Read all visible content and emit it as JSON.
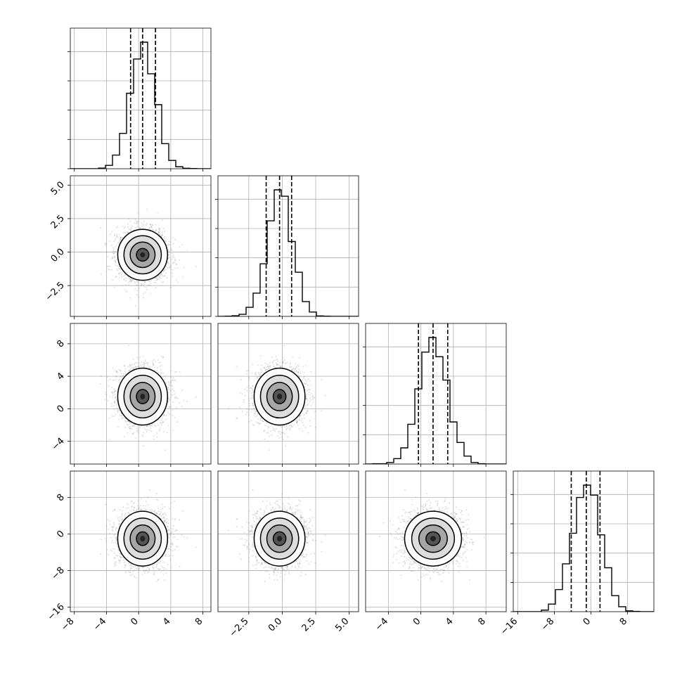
{
  "chart_data": {
    "type": "corner",
    "ticks": [
      [
        "−8",
        "−4",
        "0",
        "4",
        "8"
      ],
      [
        "−2.5",
        "0.0",
        "2.5",
        "5.0"
      ],
      [
        "−4",
        "0",
        "4",
        "8"
      ],
      [
        "−16",
        "−8",
        "0",
        "8"
      ]
    ],
    "tick_values": [
      [
        -8,
        -4,
        0,
        4,
        8
      ],
      [
        -2.5,
        0.0,
        2.5,
        5.0
      ],
      [
        -4,
        0,
        4,
        8
      ],
      [
        -16,
        -8,
        0,
        8
      ]
    ],
    "ranges": [
      [
        -8.5,
        9.0
      ],
      [
        -4.8,
        5.7
      ],
      [
        -6.8,
        10.5
      ],
      [
        -17.0,
        13.8
      ]
    ],
    "means": [
      0.5,
      -0.2,
      1.5,
      -1.0
    ],
    "sigmas": [
      1.55,
      0.95,
      1.75,
      3.0
    ],
    "quantiles": [
      [
        -1.0,
        0.5,
        2.1
      ],
      [
        -1.2,
        -0.2,
        0.7
      ],
      [
        -0.3,
        1.5,
        3.3
      ],
      [
        -4.3,
        -1.0,
        2.0
      ]
    ],
    "histograms": {
      "bins": 20,
      "color": "#000000"
    },
    "scatter_color": "#8c8c8c",
    "contour_color": "#000000",
    "grid": true
  }
}
